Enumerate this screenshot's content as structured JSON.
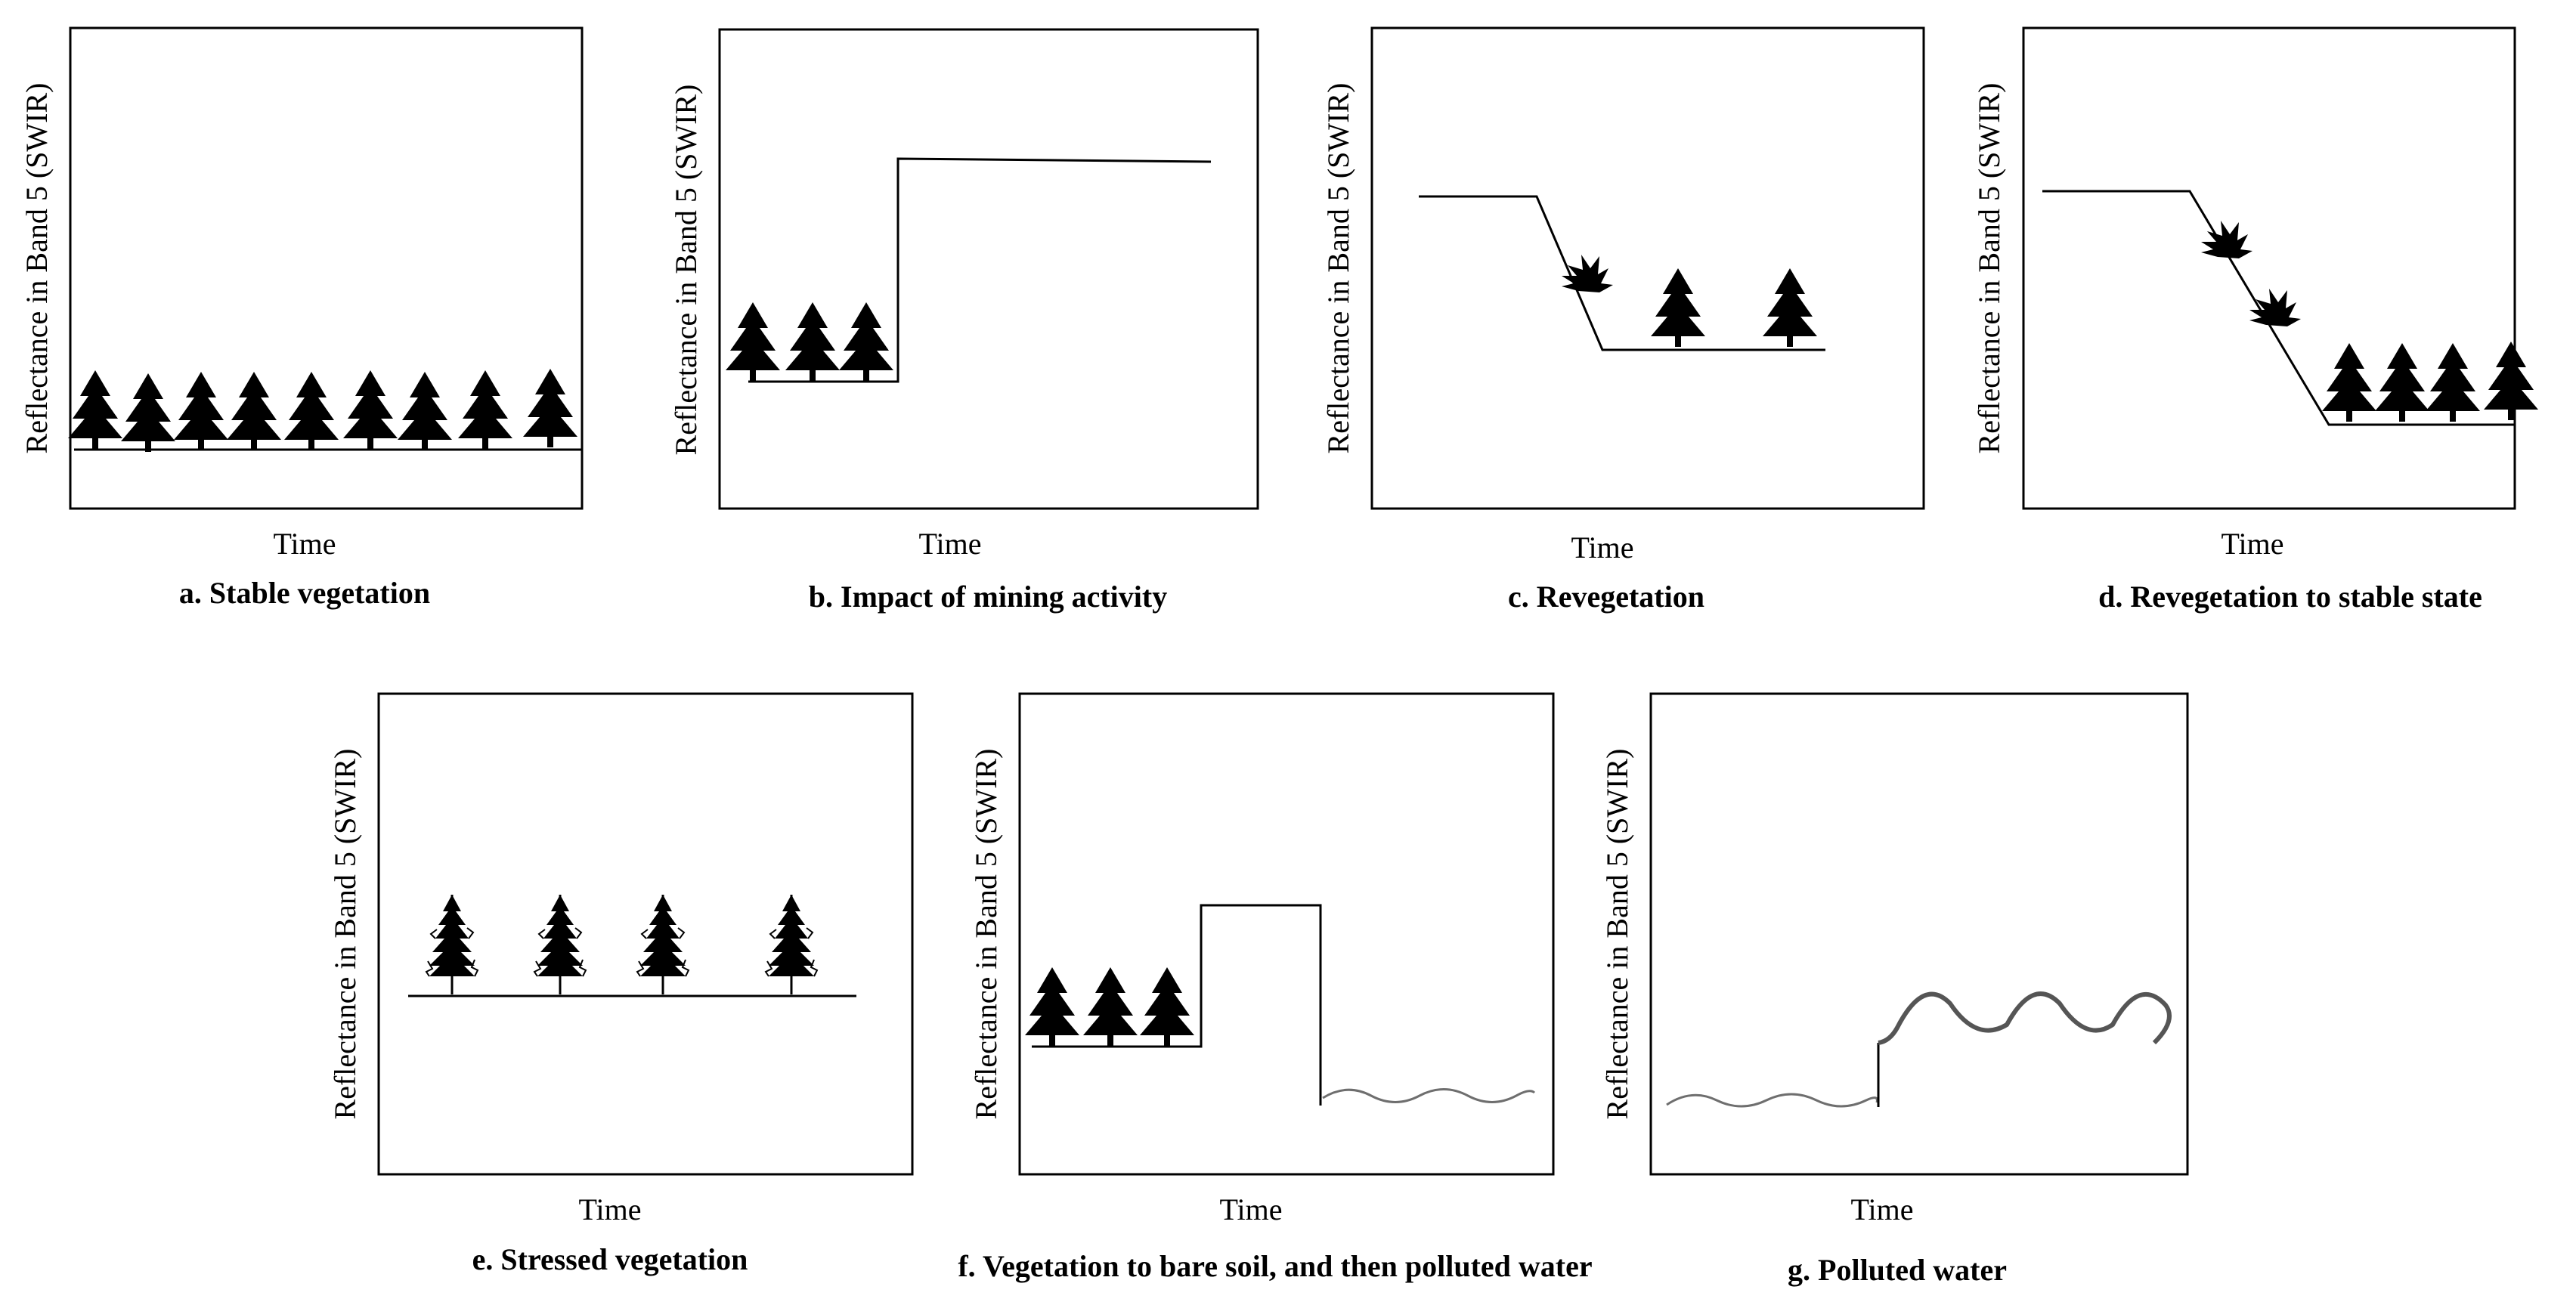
{
  "panels": [
    {
      "caption": "a. Stable vegetation",
      "xlabel": "Time",
      "ylabel": "Reflectance in Band 5 (SWIR)"
    },
    {
      "caption": "b. Impact of mining activity",
      "xlabel": "Time",
      "ylabel": "Reflectance in Band 5 (SWIR)"
    },
    {
      "caption": "c. Revegetation",
      "xlabel": "Time",
      "ylabel": "Reflectance in Band 5 (SWIR)"
    },
    {
      "caption": "d. Revegetation to stable state",
      "xlabel": "Time",
      "ylabel": "Reflectance in Band 5 (SWIR)"
    },
    {
      "caption": "e. Stressed vegetation",
      "xlabel": "Time",
      "ylabel": "Reflectance in Band 5 (SWIR)"
    },
    {
      "caption": "f. Vegetation to bare soil, and then polluted water",
      "xlabel": "Time",
      "ylabel": "Reflectance in Band 5 (SWIR)"
    },
    {
      "caption": "g. Polluted water",
      "xlabel": "Time",
      "ylabel": "Reflectance in Band 5 (SWIR)"
    }
  ],
  "icons": {
    "tree": "conifer-tree-icon",
    "sapling": "sapling-icon",
    "stressed_tree": "stressed-tree-icon",
    "water": "water-wave"
  },
  "colors": {
    "line": "#000000",
    "water_line": "#6e6e6e"
  }
}
